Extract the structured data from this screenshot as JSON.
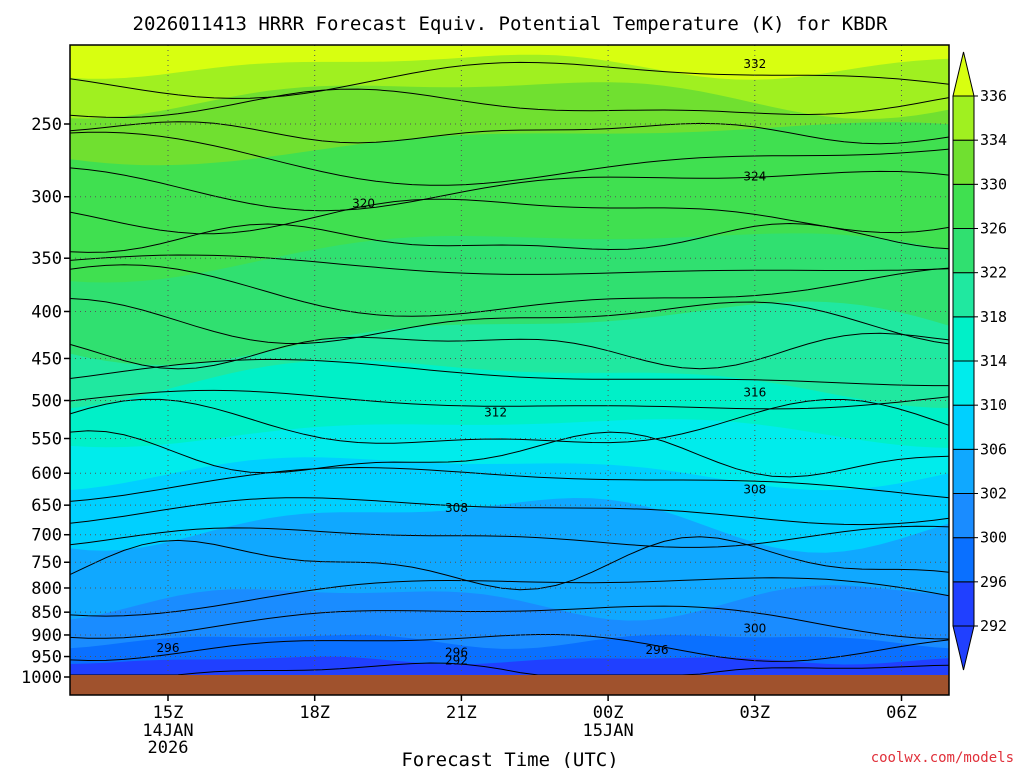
{
  "title": "2026011413 HRRR Forecast Equiv. Potential Temperature (K) for KBDR",
  "xlabel": "Forecast Time (UTC)",
  "credit": "coolwx.com/models",
  "colors": {
    "ground": "#a0522d",
    "credit": "#e0303a",
    "frame": "#000000",
    "bands": [
      "#2040ff",
      "#0a70ff",
      "#1a8cff",
      "#10a8ff",
      "#00d0ff",
      "#00ecec",
      "#00f0c8",
      "#20e8a0",
      "#30e070",
      "#40e050",
      "#70e030",
      "#a0f020",
      "#d8ff10"
    ]
  },
  "chart_data": {
    "type": "heatmap",
    "subtype": "time-height contour",
    "title": "2026011413 HRRR Forecast Equiv. Potential Temperature (K) for KBDR",
    "xlabel": "Forecast Time (UTC)",
    "ylabel": "",
    "y_scale": "log-pressure (inverted)",
    "ylim": [
      1000,
      200
    ],
    "xlim_hours": [
      13,
      31
    ],
    "grid": true,
    "x_ticks": [
      {
        "label": "15Z",
        "sub": [
          "14JAN",
          "2026"
        ],
        "hour": 15
      },
      {
        "label": "18Z",
        "sub": [],
        "hour": 18
      },
      {
        "label": "21Z",
        "sub": [],
        "hour": 21
      },
      {
        "label": "00Z",
        "sub": [
          "15JAN"
        ],
        "hour": 24
      },
      {
        "label": "03Z",
        "sub": [],
        "hour": 27
      },
      {
        "label": "06Z",
        "sub": [],
        "hour": 30
      }
    ],
    "y_ticks": [
      250,
      300,
      350,
      400,
      450,
      500,
      550,
      600,
      650,
      700,
      750,
      800,
      850,
      900,
      950,
      1000
    ],
    "colorbar_levels": [
      292,
      296,
      300,
      302,
      306,
      310,
      314,
      318,
      322,
      326,
      330,
      334,
      336
    ],
    "colorbar_placement": "right",
    "contour_levels": [
      290,
      292,
      294,
      296,
      298,
      300,
      302,
      304,
      306,
      308,
      310,
      312,
      314,
      316,
      318,
      320,
      322,
      324,
      326,
      328,
      330,
      332,
      334
    ],
    "contour_labels": [
      {
        "value": "332",
        "hour": 27.0,
        "p": 215
      },
      {
        "value": "324",
        "hour": 27.0,
        "p": 285
      },
      {
        "value": "320",
        "hour": 19.0,
        "p": 305
      },
      {
        "value": "316",
        "hour": 27.0,
        "p": 490
      },
      {
        "value": "312",
        "hour": 21.7,
        "p": 515
      },
      {
        "value": "308",
        "hour": 20.9,
        "p": 655
      },
      {
        "value": "308",
        "hour": 27.0,
        "p": 625
      },
      {
        "value": "300",
        "hour": 27.0,
        "p": 885
      },
      {
        "value": "296",
        "hour": 15.0,
        "p": 930
      },
      {
        "value": "296",
        "hour": 20.9,
        "p": 940
      },
      {
        "value": "296",
        "hour": 25.0,
        "p": 935
      },
      {
        "value": "292",
        "hour": 20.9,
        "p": 960
      }
    ]
  }
}
